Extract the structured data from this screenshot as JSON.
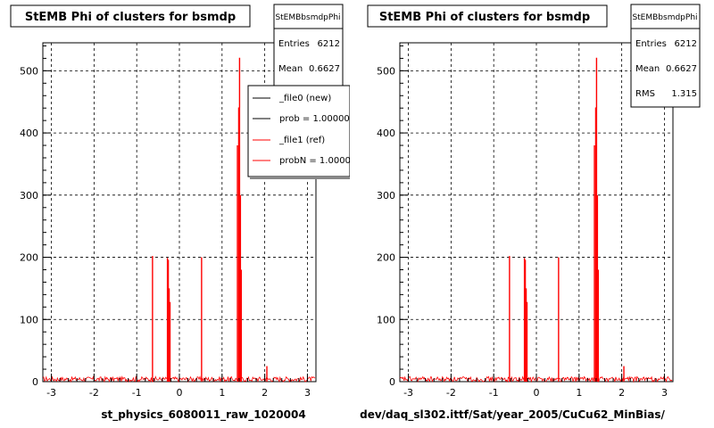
{
  "chart_data": [
    {
      "type": "line",
      "title": "StEMB Phi of clusters for bsmdp",
      "xlabel": "st_physics_6080011_raw_1020004",
      "ylabel": "",
      "xlim": [
        -3.2,
        3.2
      ],
      "ylim": [
        0,
        545
      ],
      "x_ticks": [
        "-3",
        "-2",
        "-1",
        "0",
        "1",
        "2",
        "3"
      ],
      "y_ticks": [
        "0",
        "100",
        "200",
        "300",
        "400",
        "500"
      ],
      "grid": true,
      "stats_box": {
        "name": "StEMBbsmdpPhi",
        "rows": [
          {
            "label": "Entries",
            "value": "6212"
          },
          {
            "label": "Mean",
            "value": "0.6627"
          }
        ]
      },
      "legend": {
        "placement": "top-right",
        "entries": [
          {
            "label": "_file0 (new)",
            "color": "#000000"
          },
          {
            "label": "prob = 1.000000",
            "color": "#000000"
          },
          {
            "label": "_file1 (ref)",
            "color": "#ff0000"
          },
          {
            "label": "probN = 1.000000",
            "color": "#ff0000"
          }
        ]
      },
      "series": [
        {
          "color": "#ff0000",
          "points": [
            [
              -0.63,
              202
            ],
            [
              -0.28,
              199
            ],
            [
              -0.26,
              196
            ],
            [
              -0.24,
              150
            ],
            [
              -0.22,
              128
            ],
            [
              0.52,
              200
            ],
            [
              1.36,
              380
            ],
            [
              1.39,
              441
            ],
            [
              1.41,
              521
            ],
            [
              1.43,
              300
            ],
            [
              1.45,
              180
            ],
            [
              2.05,
              25
            ]
          ]
        }
      ]
    },
    {
      "type": "line",
      "title": "StEMB Phi of clusters for bsmdp",
      "xlabel": "dev/daq_sl302.ittf/Sat/year_2005/CuCu62_MinBias/",
      "ylabel": "",
      "xlim": [
        -3.2,
        3.2
      ],
      "ylim": [
        0,
        545
      ],
      "x_ticks": [
        "-3",
        "-2",
        "-1",
        "0",
        "1",
        "2",
        "3"
      ],
      "y_ticks": [
        "0",
        "100",
        "200",
        "300",
        "400",
        "500"
      ],
      "grid": true,
      "stats_box": {
        "name": "StEMBbsmdpPhi",
        "rows": [
          {
            "label": "Entries",
            "value": "6212"
          },
          {
            "label": "Mean",
            "value": "0.6627"
          },
          {
            "label": "RMS",
            "value": "1.315"
          }
        ]
      },
      "series": [
        {
          "color": "#ff0000",
          "points": [
            [
              -0.63,
              202
            ],
            [
              -0.28,
              199
            ],
            [
              -0.26,
              196
            ],
            [
              -0.24,
              150
            ],
            [
              -0.22,
              128
            ],
            [
              0.52,
              200
            ],
            [
              1.36,
              380
            ],
            [
              1.39,
              441
            ],
            [
              1.41,
              521
            ],
            [
              1.43,
              300
            ],
            [
              1.45,
              180
            ],
            [
              2.05,
              25
            ]
          ]
        }
      ]
    }
  ]
}
